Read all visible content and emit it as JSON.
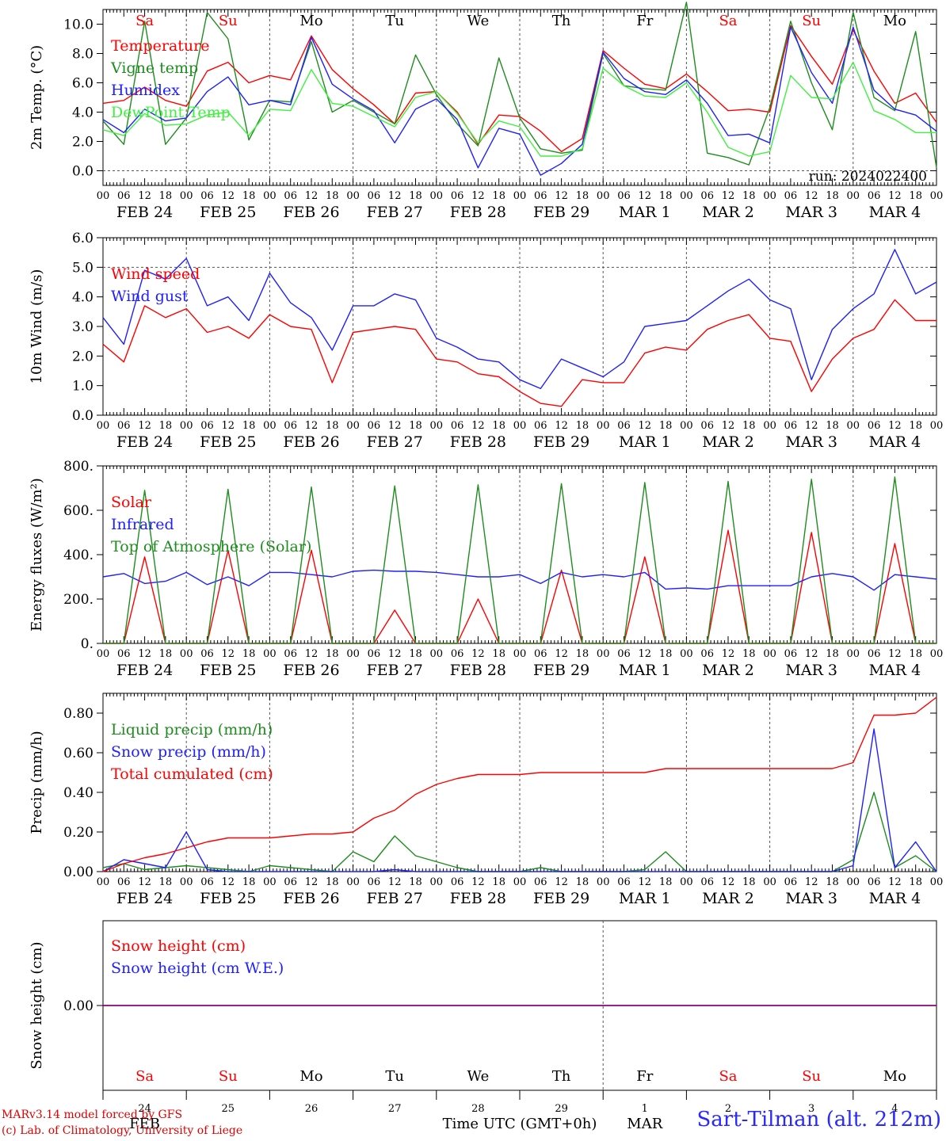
{
  "run_label": "run: 2024022400",
  "colors": {
    "red": "#ff0000",
    "green": "#1e8c1e",
    "blue": "#2020ff",
    "lightgreen": "#40f040",
    "purple": "#800080",
    "frame": "#000000"
  },
  "axis_hours": [
    "00",
    "06",
    "12",
    "18"
  ],
  "date_labels": [
    "FEB 24",
    "FEB 25",
    "FEB 26",
    "FEB 27",
    "FEB 28",
    "FEB 29",
    "MAR  1",
    "MAR  2",
    "MAR  3",
    "MAR  4"
  ],
  "day_names": [
    "Sa",
    "Su",
    "Mo",
    "Tu",
    "We",
    "Th",
    "Fr",
    "Sa",
    "Su",
    "Mo"
  ],
  "day_numbers": [
    "24",
    "25",
    "26",
    "27",
    "28",
    "29",
    "1",
    "2",
    "3",
    "4"
  ],
  "month_labels": [
    "FEB",
    "MAR"
  ],
  "xlabel": "Time UTC (GMT+0h)",
  "credit_line1": "MARv3.14 model forced by GFS",
  "credit_line2": "(c) Lab. of Climatology, University of Liege",
  "station": "Sart-Tilman (alt. 212m)",
  "chart_data": [
    {
      "type": "line",
      "ylabel": "2m Temp. (°C)",
      "ylim": [
        -1.0,
        11.0
      ],
      "yticks": [
        0.0,
        2.0,
        4.0,
        6.0,
        8.0,
        10.0
      ],
      "ytick_labels": [
        "0.0",
        "2.0",
        "4.0",
        "6.0",
        "8.0",
        "10.0"
      ],
      "dashed_ref": 0.0,
      "day_names_in_panel": true,
      "run_label": true,
      "x_hours": [
        0,
        6,
        12,
        18,
        24,
        30,
        36,
        42,
        48,
        54,
        60,
        66,
        72,
        78,
        84,
        90,
        96,
        102,
        108,
        114,
        120,
        126,
        132,
        138,
        144,
        150,
        156,
        162,
        168,
        174,
        180,
        186,
        192,
        198,
        204,
        210,
        216,
        222,
        228,
        234,
        240
      ],
      "series": [
        {
          "name": "Temperature",
          "color": "red",
          "values": [
            4.6,
            4.8,
            5.7,
            4.8,
            4.4,
            6.8,
            7.4,
            6.0,
            6.5,
            6.2,
            9.2,
            6.9,
            5.6,
            4.5,
            3.2,
            5.3,
            5.4,
            4.0,
            1.8,
            3.8,
            3.7,
            2.7,
            1.3,
            2.2,
            8.2,
            7.0,
            5.9,
            5.6,
            6.6,
            5.4,
            4.1,
            4.2,
            4.0,
            9.9,
            7.8,
            5.9,
            9.6,
            6.8,
            4.6,
            5.3,
            3.3
          ]
        },
        {
          "name": "Vigne temp",
          "color": "green",
          "values": [
            3.4,
            1.8,
            10.2,
            1.8,
            3.6,
            10.8,
            9.0,
            2.1,
            4.8,
            4.7,
            8.8,
            4.0,
            4.8,
            4.0,
            3.2,
            7.9,
            5.2,
            3.2,
            1.7,
            7.7,
            3.6,
            1.5,
            1.2,
            1.4,
            8.0,
            5.8,
            5.6,
            5.5,
            11.5,
            1.2,
            0.9,
            0.4,
            4.3,
            10.2,
            6.0,
            2.8,
            10.8,
            5.0,
            4.1,
            9.5,
            0.2
          ]
        },
        {
          "name": "Humidex",
          "color": "blue",
          "values": [
            3.5,
            2.6,
            4.2,
            3.4,
            3.6,
            5.4,
            6.4,
            4.5,
            4.8,
            4.5,
            9.1,
            5.9,
            4.9,
            4.1,
            1.9,
            4.2,
            4.9,
            3.5,
            0.2,
            2.9,
            2.5,
            -0.3,
            0.5,
            1.8,
            8.1,
            6.3,
            5.4,
            5.2,
            6.2,
            4.6,
            2.4,
            2.5,
            1.9,
            9.8,
            6.7,
            4.6,
            9.8,
            5.5,
            4.2,
            3.8,
            2.7
          ]
        },
        {
          "name": "DewPoint Temp",
          "color": "lightgreen",
          "values": [
            2.8,
            2.4,
            3.9,
            3.1,
            3.2,
            3.8,
            4.0,
            2.4,
            4.2,
            4.1,
            6.9,
            4.6,
            4.4,
            3.7,
            3.0,
            5.0,
            5.4,
            3.9,
            1.9,
            3.4,
            3.0,
            1.0,
            1.0,
            1.5,
            7.0,
            5.8,
            5.1,
            5.0,
            6.0,
            4.0,
            1.6,
            1.0,
            1.3,
            6.5,
            5.0,
            4.9,
            7.4,
            4.1,
            3.5,
            2.6,
            2.6
          ]
        }
      ]
    },
    {
      "type": "line",
      "ylabel": "10m Wind (m/s)",
      "ylim": [
        0.0,
        6.0
      ],
      "yticks": [
        0.0,
        1.0,
        2.0,
        3.0,
        4.0,
        5.0,
        6.0
      ],
      "ytick_labels": [
        "0.0",
        "1.0",
        "2.0",
        "3.0",
        "4.0",
        "5.0",
        "6.0"
      ],
      "dashed_ref": 5.0,
      "x_hours": [
        0,
        6,
        12,
        18,
        24,
        30,
        36,
        42,
        48,
        54,
        60,
        66,
        72,
        78,
        84,
        90,
        96,
        102,
        108,
        114,
        120,
        126,
        132,
        138,
        144,
        150,
        156,
        162,
        168,
        174,
        180,
        186,
        192,
        198,
        204,
        210,
        216,
        222,
        228,
        234,
        240
      ],
      "series": [
        {
          "name": "Wind speed",
          "color": "red",
          "values": [
            2.4,
            1.8,
            3.7,
            3.3,
            3.6,
            2.8,
            3.0,
            2.6,
            3.4,
            3.0,
            2.9,
            1.1,
            2.8,
            2.9,
            3.0,
            2.9,
            1.9,
            1.8,
            1.4,
            1.3,
            0.8,
            0.4,
            0.3,
            1.2,
            1.1,
            1.1,
            2.1,
            2.3,
            2.2,
            2.9,
            3.2,
            3.4,
            2.6,
            2.5,
            0.8,
            1.9,
            2.6,
            2.9,
            3.9,
            3.2,
            3.2
          ]
        },
        {
          "name": "Wind gust",
          "color": "blue",
          "values": [
            3.3,
            2.4,
            4.9,
            4.6,
            5.3,
            3.7,
            4.0,
            3.2,
            4.8,
            3.8,
            3.3,
            2.2,
            3.7,
            3.7,
            4.1,
            3.9,
            2.6,
            2.3,
            1.9,
            1.8,
            1.2,
            0.9,
            1.9,
            1.6,
            1.3,
            1.8,
            3.0,
            3.1,
            3.2,
            3.7,
            4.2,
            4.6,
            3.9,
            3.6,
            1.2,
            2.9,
            3.6,
            4.1,
            5.6,
            4.1,
            4.5
          ]
        }
      ]
    },
    {
      "type": "line",
      "ylabel": "Energy fluxes (W/m²)",
      "ylim": [
        0,
        800
      ],
      "yticks": [
        0,
        200,
        400,
        600,
        800
      ],
      "ytick_labels": [
        "0.",
        "200.",
        "400.",
        "600.",
        "800."
      ],
      "x_hours": [
        0,
        6,
        12,
        18,
        24,
        30,
        36,
        42,
        48,
        54,
        60,
        66,
        72,
        78,
        84,
        90,
        96,
        102,
        108,
        114,
        120,
        126,
        132,
        138,
        144,
        150,
        156,
        162,
        168,
        174,
        180,
        186,
        192,
        198,
        204,
        210,
        216,
        222,
        228,
        234,
        240
      ],
      "series": [
        {
          "name": "Solar",
          "color": "red",
          "values": [
            0,
            0,
            390,
            0,
            0,
            0,
            420,
            0,
            0,
            0,
            420,
            0,
            0,
            0,
            150,
            0,
            0,
            0,
            200,
            0,
            0,
            0,
            330,
            0,
            0,
            0,
            390,
            0,
            0,
            0,
            510,
            0,
            0,
            0,
            500,
            0,
            0,
            0,
            450,
            0,
            0
          ]
        },
        {
          "name": "Infrared",
          "color": "blue",
          "values": [
            300,
            315,
            270,
            280,
            320,
            265,
            300,
            260,
            320,
            320,
            310,
            300,
            325,
            330,
            325,
            325,
            320,
            310,
            300,
            300,
            310,
            270,
            320,
            300,
            310,
            300,
            320,
            245,
            250,
            245,
            260,
            260,
            260,
            260,
            300,
            315,
            300,
            240,
            310,
            300,
            290
          ]
        },
        {
          "name": "Top of Atmosphere (Solar)",
          "color": "green",
          "values": [
            0,
            0,
            690,
            0,
            0,
            0,
            695,
            0,
            0,
            0,
            705,
            0,
            0,
            0,
            710,
            0,
            0,
            0,
            715,
            0,
            0,
            0,
            720,
            0,
            0,
            0,
            725,
            0,
            0,
            0,
            730,
            0,
            0,
            0,
            740,
            0,
            0,
            0,
            750,
            0,
            0
          ]
        }
      ]
    },
    {
      "type": "line",
      "ylabel": "Precip (mm/h)",
      "ylim": [
        0.0,
        0.9
      ],
      "yticks": [
        0.0,
        0.2,
        0.4,
        0.6,
        0.8
      ],
      "ytick_labels": [
        "0.00",
        "0.20",
        "0.40",
        "0.60",
        "0.80"
      ],
      "x_hours": [
        0,
        6,
        12,
        18,
        24,
        30,
        36,
        42,
        48,
        54,
        60,
        66,
        72,
        78,
        84,
        90,
        96,
        102,
        108,
        114,
        120,
        126,
        132,
        138,
        144,
        150,
        156,
        162,
        168,
        174,
        180,
        186,
        192,
        198,
        204,
        210,
        216,
        222,
        228,
        234,
        240
      ],
      "series": [
        {
          "name": "Liquid precip (mm/h)",
          "color": "green",
          "values": [
            0.02,
            0.04,
            0.01,
            0.02,
            0.03,
            0.02,
            0.01,
            0.0,
            0.03,
            0.02,
            0.01,
            0.0,
            0.1,
            0.05,
            0.18,
            0.08,
            0.05,
            0.02,
            0.0,
            0.0,
            0.0,
            0.02,
            0.0,
            0.0,
            0.0,
            0.0,
            0.01,
            0.1,
            0.0,
            0.0,
            0.0,
            0.0,
            0.0,
            0.0,
            0.0,
            0.0,
            0.06,
            0.4,
            0.02,
            0.08,
            0.0
          ]
        },
        {
          "name": "Snow precip (mm/h)",
          "color": "blue",
          "values": [
            0.0,
            0.06,
            0.04,
            0.02,
            0.2,
            0.01,
            0.0,
            0.0,
            0.0,
            0.0,
            0.0,
            0.0,
            0.0,
            0.0,
            0.01,
            0.0,
            0.0,
            0.0,
            0.0,
            0.0,
            0.0,
            0.0,
            0.0,
            0.0,
            0.0,
            0.0,
            0.0,
            0.0,
            0.0,
            0.0,
            0.0,
            0.0,
            0.0,
            0.0,
            0.0,
            0.0,
            0.03,
            0.72,
            0.02,
            0.15,
            0.0
          ]
        },
        {
          "name": "Total cumulated (cm)",
          "color": "red",
          "values": [
            0.0,
            0.04,
            0.07,
            0.09,
            0.12,
            0.15,
            0.17,
            0.17,
            0.17,
            0.18,
            0.19,
            0.19,
            0.2,
            0.27,
            0.31,
            0.39,
            0.44,
            0.47,
            0.49,
            0.49,
            0.49,
            0.5,
            0.5,
            0.5,
            0.5,
            0.5,
            0.5,
            0.52,
            0.52,
            0.52,
            0.52,
            0.52,
            0.52,
            0.52,
            0.52,
            0.52,
            0.55,
            0.79,
            0.79,
            0.8,
            0.88
          ]
        }
      ]
    },
    {
      "type": "line",
      "ylabel": "Snow height (cm)",
      "ylim": [
        -1.0,
        1.0
      ],
      "yticks": [
        0.0
      ],
      "ytick_labels": [
        "0.00"
      ],
      "x_hours": [
        0,
        240
      ],
      "series": [
        {
          "name": "Snow height (cm)",
          "color": "red",
          "values": [
            0.0,
            0.0
          ]
        },
        {
          "name": "Snow height (cm W.E.)",
          "color": "purple",
          "legend_color": "blue",
          "values": [
            0.0,
            0.0
          ]
        }
      ]
    }
  ]
}
